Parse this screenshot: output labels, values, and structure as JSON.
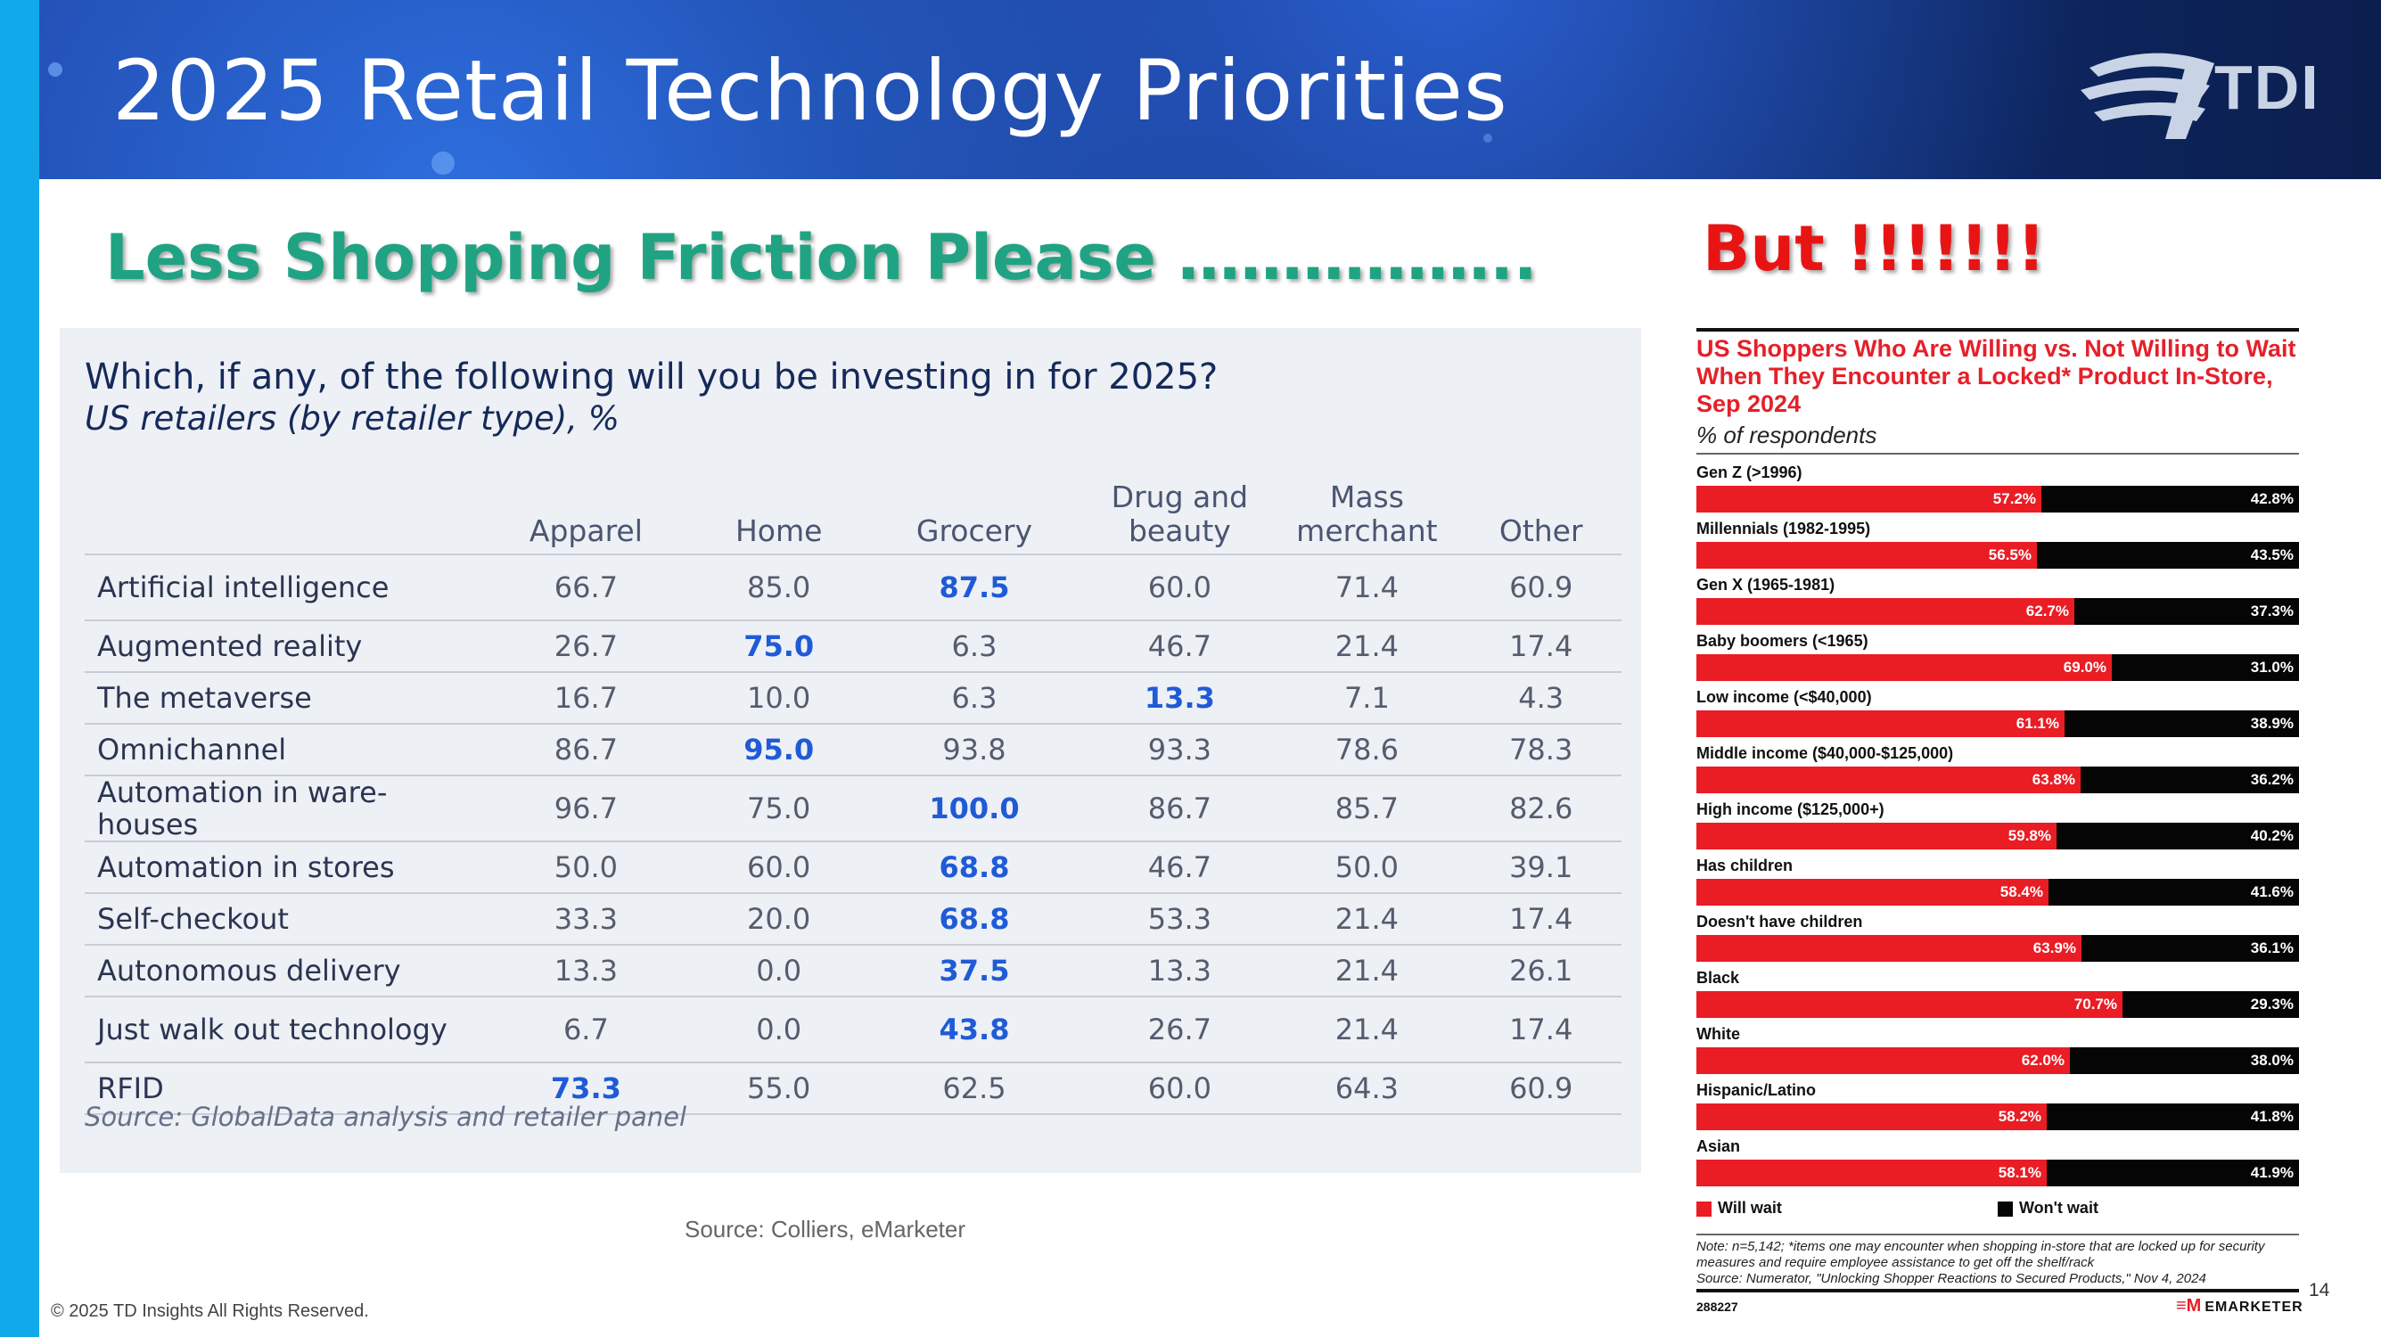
{
  "header": {
    "title": "2025 Retail Technology Priorities",
    "logo_text": "TDI"
  },
  "headline_left": "Less Shopping Friction Please ……………..",
  "headline_right": "But !!!!!!!",
  "survey": {
    "question": "Which, if any, of the following will you be investing in for 2025?",
    "subtitle": "US retailers (by retailer type), %",
    "columns": [
      "Apparel",
      "Home",
      "Grocery",
      "Drug and beauty",
      "Mass merchant",
      "Other"
    ],
    "rows": [
      {
        "label": "Artificial intelligence",
        "values": [
          "66.7",
          "85.0",
          "87.5",
          "60.0",
          "71.4",
          "60.9"
        ],
        "highlight": 2
      },
      {
        "label": "Augmented reality",
        "values": [
          "26.7",
          "75.0",
          "6.3",
          "46.7",
          "21.4",
          "17.4"
        ],
        "highlight": 1
      },
      {
        "label": "The metaverse",
        "values": [
          "16.7",
          "10.0",
          "6.3",
          "13.3",
          "7.1",
          "4.3"
        ],
        "highlight": 3
      },
      {
        "label": "Omnichannel",
        "values": [
          "86.7",
          "95.0",
          "93.8",
          "93.3",
          "78.6",
          "78.3"
        ],
        "highlight": 1
      },
      {
        "label": "Automation in ware-houses",
        "values": [
          "96.7",
          "75.0",
          "100.0",
          "86.7",
          "85.7",
          "82.6"
        ],
        "highlight": 2
      },
      {
        "label": "Automation in stores",
        "values": [
          "50.0",
          "60.0",
          "68.8",
          "46.7",
          "50.0",
          "39.1"
        ],
        "highlight": 2
      },
      {
        "label": "Self-checkout",
        "values": [
          "33.3",
          "20.0",
          "68.8",
          "53.3",
          "21.4",
          "17.4"
        ],
        "highlight": 2
      },
      {
        "label": "Autonomous delivery",
        "values": [
          "13.3",
          "0.0",
          "37.5",
          "13.3",
          "21.4",
          "26.1"
        ],
        "highlight": 2
      },
      {
        "label": "Just walk out technology",
        "values": [
          "6.7",
          "0.0",
          "43.8",
          "26.7",
          "21.4",
          "17.4"
        ],
        "highlight": 2
      },
      {
        "label": "RFID",
        "values": [
          "73.3",
          "55.0",
          "62.5",
          "60.0",
          "64.3",
          "60.9"
        ],
        "highlight": 0
      }
    ],
    "source": "Source: GlobalData analysis and retailer panel"
  },
  "source_bottom": "Source: Colliers, eMarketer",
  "copyright": "© 2025 TD Insights All Rights Reserved.",
  "page_number": "14",
  "chart_data": {
    "type": "bar",
    "orientation": "horizontal-stacked",
    "title": "US Shoppers Who Are Willing vs. Not Willing to Wait When They Encounter a Locked* Product In-Store, Sep 2024",
    "subtitle": "% of respondents",
    "categories": [
      "Gen Z (>1996)",
      "Millennials (1982-1995)",
      "Gen X (1965-1981)",
      "Baby boomers (<1965)",
      "Low income (<$40,000)",
      "Middle income ($40,000-$125,000)",
      "High income ($125,000+)",
      "Has children",
      "Doesn't have children",
      "Black",
      "White",
      "Hispanic/Latino",
      "Asian"
    ],
    "series": [
      {
        "name": "Will wait",
        "color": "#ea1c24",
        "values": [
          57.2,
          56.5,
          62.7,
          69.0,
          61.1,
          63.8,
          59.8,
          58.4,
          63.9,
          70.7,
          62.0,
          58.2,
          58.1
        ]
      },
      {
        "name": "Won't wait",
        "color": "#050505",
        "values": [
          42.8,
          43.5,
          37.3,
          31.0,
          38.9,
          36.2,
          40.2,
          41.6,
          36.1,
          29.3,
          38.0,
          41.8,
          41.9
        ]
      }
    ],
    "legend_position": "bottom",
    "note": "Note: n=5,142; *items one may encounter when shopping in-store that are locked up for security measures and require employee assistance to get off the shelf/rack",
    "source": "Source: Numerator, \"Unlocking Shopper Reactions to Secured Products,\" Nov 4, 2024",
    "chart_id": "288227",
    "brand": "EMARKETER"
  }
}
